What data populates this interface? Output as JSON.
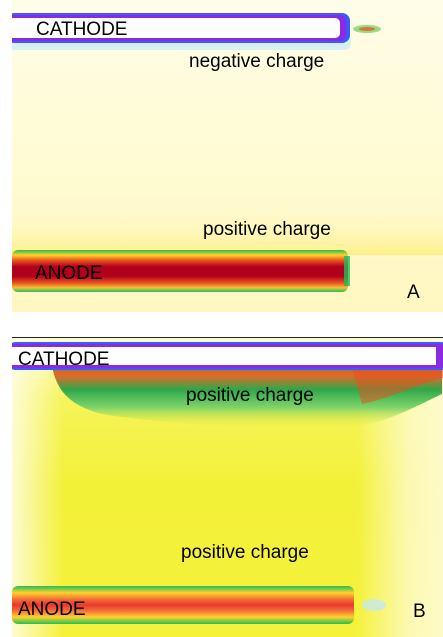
{
  "panel_a": {
    "cathode_label": "CATHODE",
    "anode_label": "ANODE",
    "upper_charge_label": "negative charge",
    "lower_charge_label": "positive charge",
    "panel_label": "A"
  },
  "panel_b": {
    "cathode_label": "CATHODE",
    "anode_label": "ANODE",
    "upper_charge_label": "positive charge",
    "lower_charge_label": "positive charge",
    "panel_label": "B"
  },
  "colors": {
    "background_a": "#fffbe0",
    "background_b": "#f5f23c",
    "anode_core": "#b0001c",
    "anode_edge_green": "#1fbf5a",
    "cathode_core": "#ffffff",
    "cathode_edge_blue": "#3a5bff",
    "cathode_edge_purple": "#8a2be2"
  }
}
